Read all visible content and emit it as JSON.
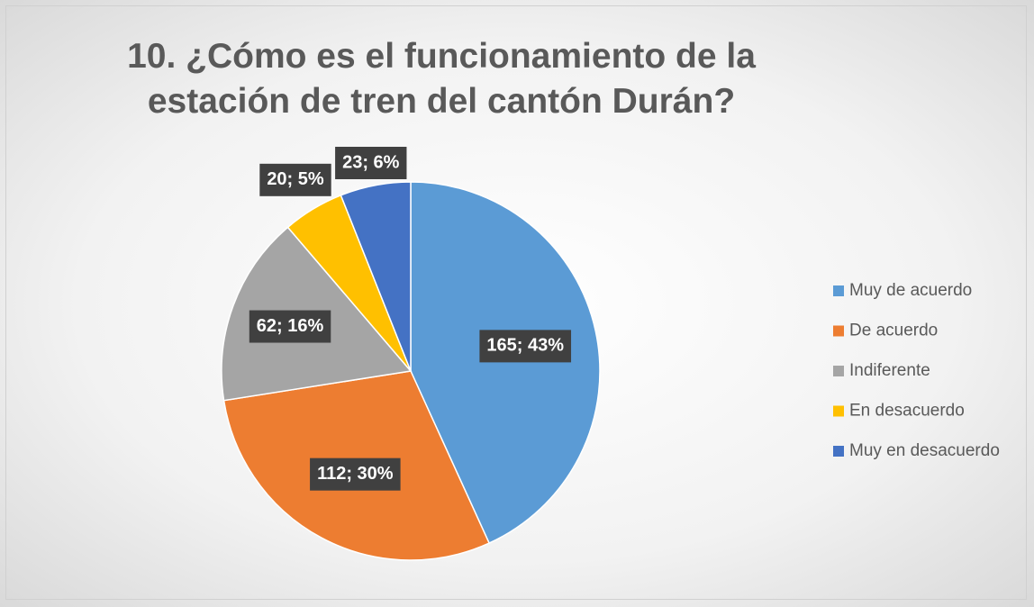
{
  "chart_data": {
    "type": "pie",
    "title": "10. ¿Cómo es el funcionamiento de la estación de tren del cantón Durán?",
    "categories": [
      "Muy de acuerdo",
      "De acuerdo",
      "Indiferente",
      "En desacuerdo",
      "Muy en desacuerdo"
    ],
    "values": [
      165,
      112,
      62,
      20,
      23
    ],
    "value_labels": [
      "165; 43%",
      "112; 30%",
      "62; 16%",
      "20; 5%",
      "23; 6%"
    ],
    "colors": [
      "#5b9bd5",
      "#ed7d31",
      "#a5a5a5",
      "#ffc000",
      "#4472c4"
    ],
    "legend": "right"
  }
}
